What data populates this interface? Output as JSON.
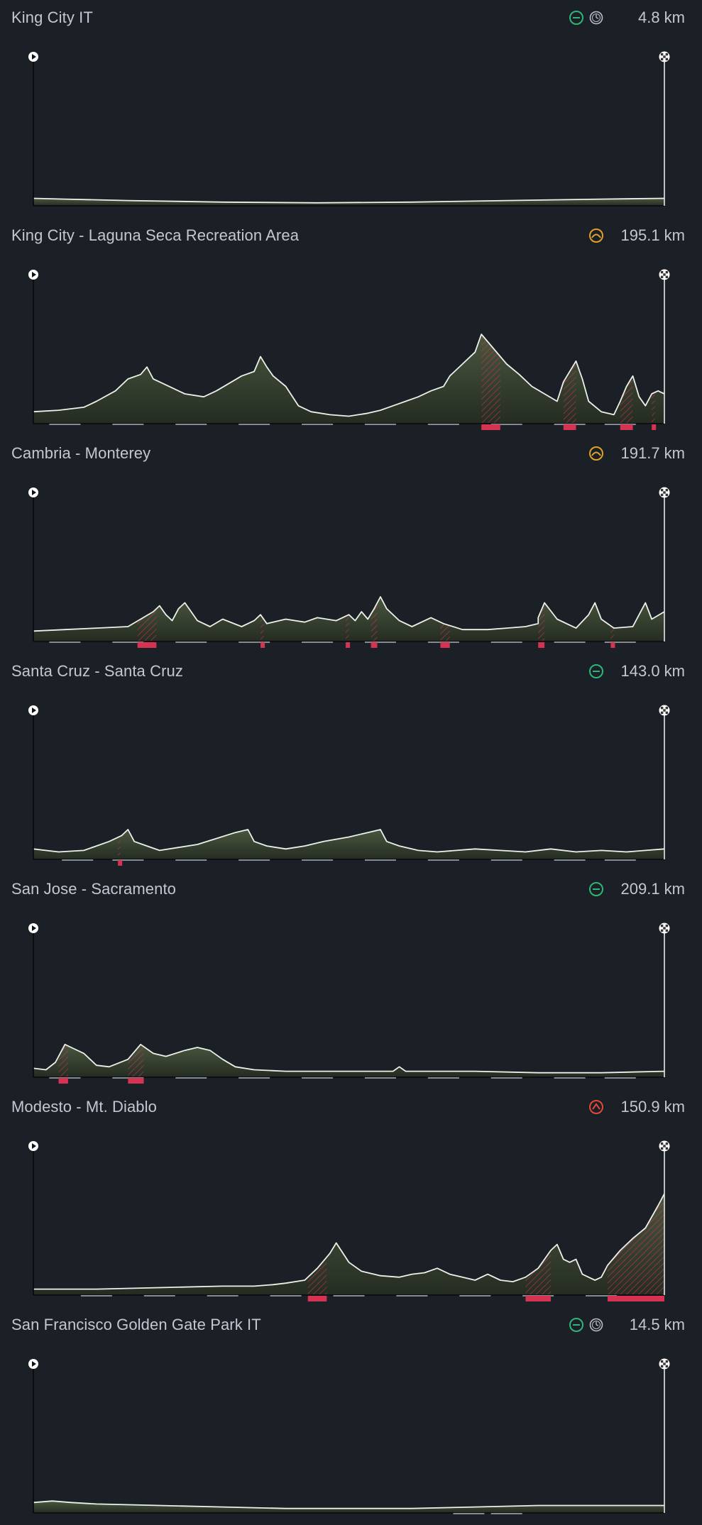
{
  "colors": {
    "background": "#1b1f26",
    "terrain_fill": "#4c5a40",
    "terrain_line": "#eef0ea",
    "climb_marker": "#d63352",
    "flat_icon": "#2fb576",
    "hilly_icon": "#e0a12a",
    "mountain_icon": "#e04a3a",
    "tt_icon": "#b9bec6"
  },
  "chart_data": [
    {
      "type": "area",
      "title": "King City IT",
      "distance": "4.8 km",
      "profile": "flat",
      "time_trial": true,
      "icons": [
        "flat-icon",
        "stopwatch-icon"
      ],
      "x": [
        0,
        0.05,
        0.15,
        0.3,
        0.45,
        0.6,
        0.75,
        0.9,
        1.0
      ],
      "y": [
        5,
        4.5,
        3.5,
        2.5,
        2,
        2.5,
        3.5,
        4.5,
        5
      ],
      "ylim": [
        0,
        100
      ],
      "climbs": [],
      "finish_marks": []
    },
    {
      "type": "area",
      "title": "King City - Laguna Seca Recreation Area",
      "distance": "195.1 km",
      "profile": "hilly",
      "time_trial": false,
      "icons": [
        "hilly-icon"
      ],
      "x": [
        0,
        0.04,
        0.08,
        0.1,
        0.13,
        0.15,
        0.17,
        0.18,
        0.19,
        0.2,
        0.22,
        0.24,
        0.27,
        0.29,
        0.31,
        0.33,
        0.35,
        0.36,
        0.37,
        0.38,
        0.4,
        0.42,
        0.44,
        0.47,
        0.5,
        0.53,
        0.55,
        0.57,
        0.59,
        0.61,
        0.63,
        0.65,
        0.66,
        0.68,
        0.7,
        0.71,
        0.72,
        0.73,
        0.74,
        0.75,
        0.77,
        0.79,
        0.81,
        0.83,
        0.84,
        0.86,
        0.87,
        0.88,
        0.9,
        0.92,
        0.93,
        0.94,
        0.95,
        0.96,
        0.97,
        0.98,
        0.99,
        1.0
      ],
      "y": [
        8,
        9,
        11,
        15,
        22,
        30,
        33,
        38,
        30,
        28,
        24,
        20,
        18,
        22,
        27,
        32,
        35,
        45,
        38,
        32,
        25,
        12,
        8,
        6,
        5,
        7,
        9,
        12,
        15,
        18,
        22,
        25,
        32,
        40,
        48,
        60,
        55,
        50,
        45,
        40,
        33,
        25,
        20,
        15,
        28,
        42,
        30,
        15,
        8,
        6,
        15,
        25,
        32,
        18,
        12,
        20,
        22,
        20
      ],
      "ylim": [
        0,
        100
      ],
      "climbs": [
        [
          0.71,
          0.74
        ],
        [
          0.84,
          0.86
        ],
        [
          0.93,
          0.95
        ],
        [
          0.98,
          0.985
        ]
      ],
      "finish_marks": [
        0.05,
        0.15,
        0.25,
        0.35,
        0.45,
        0.55,
        0.65,
        0.75,
        0.85,
        0.93
      ]
    },
    {
      "type": "area",
      "title": "Cambria - Monterey",
      "distance": "191.7 km",
      "profile": "hilly",
      "time_trial": false,
      "icons": [
        "hilly-icon"
      ],
      "x": [
        0,
        0.05,
        0.1,
        0.15,
        0.17,
        0.19,
        0.2,
        0.21,
        0.22,
        0.23,
        0.24,
        0.25,
        0.26,
        0.28,
        0.3,
        0.33,
        0.35,
        0.36,
        0.37,
        0.4,
        0.43,
        0.45,
        0.48,
        0.5,
        0.51,
        0.52,
        0.53,
        0.54,
        0.55,
        0.56,
        0.58,
        0.6,
        0.63,
        0.65,
        0.68,
        0.72,
        0.75,
        0.78,
        0.8,
        0.8,
        0.81,
        0.83,
        0.86,
        0.88,
        0.89,
        0.9,
        0.92,
        0.95,
        0.96,
        0.97,
        0.98,
        1.0
      ],
      "y": [
        7,
        8,
        9,
        10,
        15,
        20,
        24,
        18,
        14,
        22,
        26,
        20,
        14,
        10,
        15,
        10,
        14,
        18,
        12,
        15,
        13,
        16,
        14,
        18,
        14,
        20,
        15,
        22,
        30,
        22,
        14,
        10,
        16,
        12,
        8,
        8,
        9,
        10,
        12,
        16,
        26,
        15,
        9,
        18,
        26,
        15,
        9,
        10,
        18,
        26,
        15,
        20
      ],
      "ylim": [
        0,
        100
      ],
      "climbs": [
        [
          0.165,
          0.195
        ],
        [
          0.36,
          0.365
        ],
        [
          0.495,
          0.5
        ],
        [
          0.535,
          0.545
        ],
        [
          0.645,
          0.66
        ],
        [
          0.8,
          0.81
        ],
        [
          0.915,
          0.92
        ]
      ],
      "finish_marks": [
        0.05,
        0.15,
        0.25,
        0.35,
        0.45,
        0.55,
        0.65,
        0.75,
        0.85,
        0.93
      ]
    },
    {
      "type": "area",
      "title": "Santa Cruz - Santa Cruz",
      "distance": "143.0 km",
      "profile": "flat",
      "time_trial": false,
      "icons": [
        "flat-icon"
      ],
      "x": [
        0,
        0.04,
        0.08,
        0.1,
        0.12,
        0.14,
        0.15,
        0.16,
        0.18,
        0.2,
        0.23,
        0.26,
        0.29,
        0.32,
        0.34,
        0.35,
        0.37,
        0.4,
        0.43,
        0.46,
        0.5,
        0.53,
        0.55,
        0.56,
        0.58,
        0.61,
        0.64,
        0.67,
        0.7,
        0.74,
        0.78,
        0.82,
        0.86,
        0.9,
        0.94,
        0.97,
        1.0
      ],
      "y": [
        7,
        5,
        6,
        9,
        12,
        16,
        20,
        12,
        9,
        6,
        8,
        10,
        14,
        18,
        20,
        12,
        9,
        7,
        9,
        12,
        15,
        18,
        20,
        12,
        9,
        6,
        5,
        6,
        7,
        6,
        5,
        7,
        5,
        6,
        5,
        6,
        7
      ],
      "ylim": [
        0,
        100
      ],
      "climbs": [
        [
          0.134,
          0.138
        ]
      ],
      "finish_marks": [
        0.07,
        0.15,
        0.25,
        0.35,
        0.45,
        0.55,
        0.65,
        0.75,
        0.85,
        0.93
      ]
    },
    {
      "type": "area",
      "title": "San Jose - Sacramento",
      "distance": "209.1 km",
      "profile": "flat",
      "time_trial": false,
      "icons": [
        "flat-icon"
      ],
      "x": [
        0,
        0.02,
        0.035,
        0.05,
        0.06,
        0.08,
        0.1,
        0.12,
        0.15,
        0.17,
        0.19,
        0.21,
        0.24,
        0.26,
        0.28,
        0.3,
        0.32,
        0.35,
        0.4,
        0.45,
        0.5,
        0.55,
        0.57,
        0.58,
        0.59,
        0.6,
        0.7,
        0.8,
        0.9,
        1.0
      ],
      "y": [
        6,
        5,
        10,
        22,
        20,
        16,
        8,
        7,
        12,
        22,
        16,
        14,
        18,
        20,
        18,
        12,
        7,
        5,
        4,
        4,
        4,
        4,
        4,
        7,
        4,
        4,
        4,
        3,
        3,
        4
      ],
      "ylim": [
        0,
        100
      ],
      "climbs": [
        [
          0.04,
          0.055
        ],
        [
          0.15,
          0.175
        ]
      ],
      "finish_marks": [
        0.05,
        0.15,
        0.25,
        0.35,
        0.45,
        0.55,
        0.65,
        0.75,
        0.85,
        0.93
      ]
    },
    {
      "type": "area",
      "title": "Modesto - Mt. Diablo",
      "distance": "150.9 km",
      "profile": "mountain",
      "time_trial": false,
      "icons": [
        "mountain-icon"
      ],
      "x": [
        0,
        0.1,
        0.2,
        0.3,
        0.35,
        0.38,
        0.4,
        0.43,
        0.45,
        0.47,
        0.48,
        0.5,
        0.52,
        0.55,
        0.58,
        0.6,
        0.62,
        0.64,
        0.66,
        0.68,
        0.7,
        0.72,
        0.74,
        0.76,
        0.78,
        0.8,
        0.82,
        0.83,
        0.84,
        0.85,
        0.86,
        0.87,
        0.88,
        0.89,
        0.9,
        0.91,
        0.93,
        0.95,
        0.97,
        0.99,
        1.0
      ],
      "y": [
        4,
        4,
        5,
        6,
        6,
        7,
        8,
        10,
        18,
        28,
        35,
        22,
        16,
        13,
        12,
        14,
        15,
        18,
        14,
        12,
        10,
        14,
        10,
        9,
        12,
        18,
        30,
        34,
        24,
        22,
        24,
        14,
        12,
        10,
        12,
        20,
        30,
        38,
        45,
        60,
        68
      ],
      "ylim": [
        0,
        100
      ],
      "climbs": [
        [
          0.435,
          0.465
        ],
        [
          0.78,
          0.82
        ],
        [
          0.91,
          1.0
        ]
      ],
      "finish_marks": [
        0.1,
        0.2,
        0.3,
        0.4,
        0.5,
        0.6,
        0.7,
        0.8,
        0.9
      ]
    },
    {
      "type": "area",
      "title": "San Francisco Golden Gate Park IT",
      "distance": "14.5 km",
      "profile": "flat",
      "time_trial": true,
      "icons": [
        "flat-icon",
        "stopwatch-icon"
      ],
      "x": [
        0,
        0.03,
        0.06,
        0.1,
        0.2,
        0.3,
        0.4,
        0.5,
        0.6,
        0.7,
        0.8,
        0.9,
        1.0
      ],
      "y": [
        7,
        8,
        7,
        6,
        5,
        4,
        3,
        3,
        3,
        4,
        5,
        5,
        5
      ],
      "ylim": [
        0,
        100
      ],
      "climbs": [],
      "finish_marks": [
        0.69,
        0.75
      ]
    }
  ]
}
